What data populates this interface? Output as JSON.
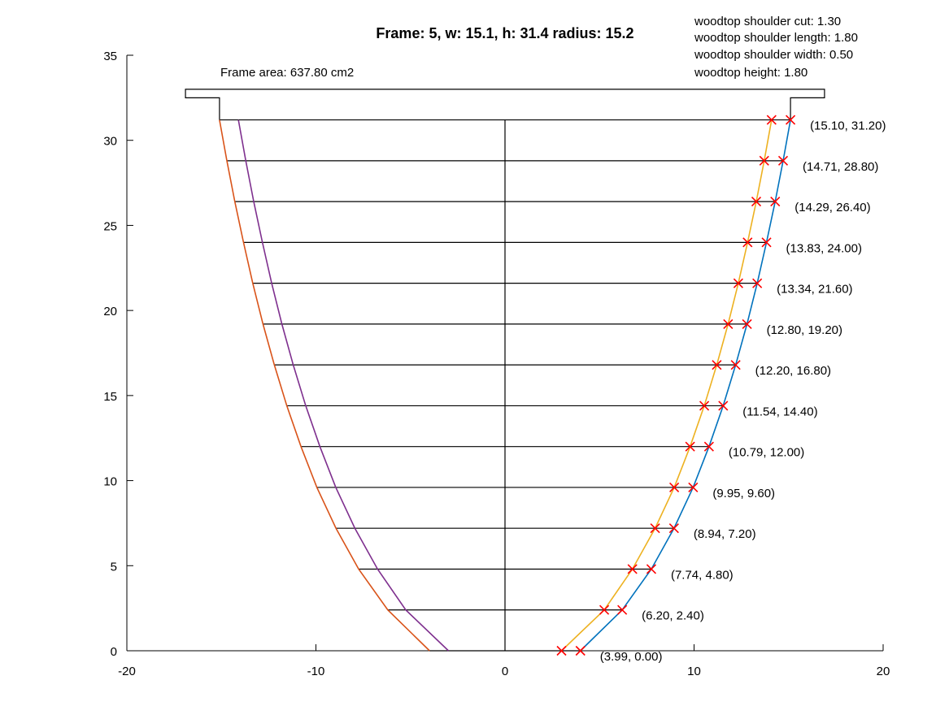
{
  "chart_data": {
    "type": "line",
    "title": "Frame: 5, w: 15.1, h: 31.4 radius: 15.2",
    "annotation": "Frame area: 637.80 cm2",
    "info_lines": [
      "woodtop shoulder cut: 1.30",
      "woodtop shoulder length: 1.80",
      "woodtop shoulder width: 0.50",
      "woodtop height: 1.80"
    ],
    "xlim": [
      -20,
      20
    ],
    "ylim": [
      0,
      35
    ],
    "x_ticks": [
      -20,
      -10,
      0,
      10,
      20
    ],
    "y_ticks": [
      0,
      5,
      10,
      15,
      20,
      25,
      30,
      35
    ],
    "x_tick_labels": [
      "-20",
      "-10",
      "0",
      "10",
      "20"
    ],
    "y_tick_labels": [
      "0",
      "5",
      "10",
      "15",
      "20",
      "25",
      "30",
      "35"
    ],
    "grid": false,
    "colors": {
      "outer": "#0072bd",
      "inner": "#edb120",
      "mirror_outer": "#d95319",
      "mirror_inner": "#7e2f8e",
      "marker": "#ff0000",
      "lines": "#000000"
    },
    "series": [
      {
        "y": [
          0.0,
          2.4,
          4.8,
          7.2,
          9.6,
          12.0,
          14.4,
          16.8,
          19.2,
          21.6,
          24.0,
          26.4,
          28.8,
          31.2
        ],
        "x_outer": [
          3.99,
          6.2,
          7.74,
          8.94,
          9.95,
          10.79,
          11.54,
          12.2,
          12.8,
          13.34,
          13.83,
          14.29,
          14.71,
          15.1
        ],
        "x_inner": [
          2.99,
          5.25,
          6.74,
          7.94,
          8.95,
          9.79,
          10.54,
          11.2,
          11.8,
          12.34,
          12.83,
          13.29,
          13.71,
          14.1
        ]
      }
    ],
    "point_labels": [
      "(3.99, 0.00)",
      "(6.20, 2.40)",
      "(7.74, 4.80)",
      "(8.94, 7.20)",
      "(9.95, 9.60)",
      "(10.79, 12.00)",
      "(11.54, 14.40)",
      "(12.20, 16.80)",
      "(12.80, 19.20)",
      "(13.34, 21.60)",
      "(13.83, 24.00)",
      "(14.29, 26.40)",
      "(14.71, 28.80)",
      "(15.10, 31.20)"
    ],
    "top_shape": [
      [
        -15.1,
        31.2
      ],
      [
        -15.1,
        32.5
      ],
      [
        -16.9,
        32.5
      ],
      [
        -16.9,
        33.0
      ],
      [
        16.9,
        33.0
      ],
      [
        16.9,
        32.5
      ],
      [
        15.1,
        32.5
      ],
      [
        15.1,
        31.2
      ]
    ],
    "center_line": [
      [
        0,
        0
      ],
      [
        0,
        31.2
      ]
    ]
  }
}
